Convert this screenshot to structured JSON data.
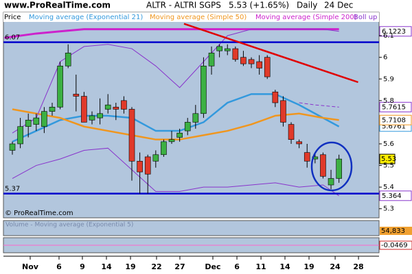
{
  "header": {
    "site": "www.ProRealTime.com",
    "title": "ALTR - ALTRI SGPS",
    "quote": "5.53 (+1.65%)",
    "period": "Daily",
    "date": "24 Dec"
  },
  "chart_data": {
    "type": "candlestick",
    "panel_label": "Price",
    "copyright": "© ProRealTime.com",
    "xlim": [
      -1.12,
      46.03
    ],
    "xticks": [
      {
        "value": 2.24,
        "label": "Nov"
      },
      {
        "value": 5.86,
        "label": "6"
      },
      {
        "value": 8.79,
        "label": "9"
      },
      {
        "value": 11.81,
        "label": "14"
      },
      {
        "value": 14.83,
        "label": "19"
      },
      {
        "value": 18.1,
        "label": "22"
      },
      {
        "value": 21.03,
        "label": "27"
      },
      {
        "value": 25.17,
        "label": "Dec"
      },
      {
        "value": 28.19,
        "label": "6"
      },
      {
        "value": 31.21,
        "label": "11"
      },
      {
        "value": 34.22,
        "label": "14"
      },
      {
        "value": 37.24,
        "label": "19"
      },
      {
        "value": 40.52,
        "label": "24"
      },
      {
        "value": 43.45,
        "label": "28"
      }
    ],
    "ylim": [
      5.258,
      6.208
    ],
    "yticks": [
      5.3,
      5.4,
      5.5,
      5.6,
      5.8,
      5.9,
      6,
      6.1
    ],
    "up_color": "#3cb043",
    "down_color": "#e03a2a",
    "x": [
      0,
      1,
      2,
      3,
      4,
      5,
      6,
      7,
      8,
      9,
      10,
      11,
      12,
      13,
      14,
      15,
      16,
      17,
      18,
      19,
      20,
      21,
      22,
      23,
      24,
      25,
      26,
      27,
      28,
      29,
      30,
      31,
      32,
      33,
      34,
      35,
      36,
      37,
      38,
      39,
      40,
      41
    ],
    "open": [
      5.57,
      5.6,
      5.68,
      5.69,
      5.68,
      5.75,
      5.77,
      5.96,
      5.83,
      5.82,
      5.71,
      5.72,
      5.76,
      5.77,
      5.8,
      5.76,
      5.52,
      5.54,
      5.52,
      5.55,
      5.61,
      5.63,
      5.66,
      5.7,
      5.74,
      5.96,
      6.03,
      6.03,
      6.04,
      6.0,
      5.99,
      5.98,
      6.0,
      5.84,
      5.8,
      5.69,
      5.61,
      5.56,
      5.53,
      5.55,
      5.41,
      5.44
    ],
    "high": [
      5.61,
      5.72,
      5.74,
      5.74,
      5.77,
      5.79,
      5.98,
      6.06,
      5.92,
      5.84,
      5.75,
      5.81,
      5.83,
      5.79,
      5.82,
      5.77,
      5.56,
      5.55,
      5.57,
      5.62,
      5.66,
      5.67,
      5.72,
      5.78,
      6.0,
      6.05,
      6.06,
      6.06,
      6.05,
      6.03,
      6.0,
      6.01,
      6.01,
      5.85,
      5.82,
      5.7,
      5.62,
      5.6,
      5.56,
      5.56,
      5.48,
      5.55
    ],
    "low": [
      5.55,
      5.58,
      5.63,
      5.66,
      5.65,
      5.73,
      5.76,
      5.95,
      5.75,
      5.7,
      5.69,
      5.69,
      5.74,
      5.71,
      5.74,
      5.43,
      5.37,
      5.37,
      5.49,
      5.54,
      5.6,
      5.61,
      5.64,
      5.67,
      5.72,
      5.92,
      6.0,
      6.01,
      5.98,
      5.96,
      5.95,
      5.92,
      5.9,
      5.77,
      5.68,
      5.6,
      5.58,
      5.49,
      5.51,
      5.44,
      5.39,
      5.42
    ],
    "close": [
      5.6,
      5.68,
      5.71,
      5.72,
      5.75,
      5.77,
      5.96,
      6.02,
      5.82,
      5.7,
      5.73,
      5.74,
      5.78,
      5.76,
      5.76,
      5.52,
      5.47,
      5.46,
      5.55,
      5.61,
      5.62,
      5.65,
      5.7,
      5.74,
      5.96,
      6.02,
      6.05,
      6.04,
      5.99,
      5.97,
      5.97,
      5.95,
      5.91,
      5.79,
      5.7,
      5.62,
      5.6,
      5.52,
      5.54,
      5.45,
      5.44,
      5.53
    ],
    "price_label_color": "#ffee00",
    "lines": [
      {
        "name": "Moving average (Exponential 21)",
        "color": "#3399dd",
        "width": 2.5,
        "x": [
          0,
          3,
          6,
          9,
          12,
          15,
          18,
          21,
          24,
          27,
          30,
          33,
          36,
          39,
          41
        ],
        "values": [
          5.61,
          5.66,
          5.71,
          5.73,
          5.73,
          5.72,
          5.66,
          5.66,
          5.7,
          5.79,
          5.83,
          5.83,
          5.78,
          5.72,
          5.68
        ],
        "end_label": "5.6761"
      },
      {
        "name": "Moving average (Simple 50)",
        "color": "#f0961e",
        "width": 2.5,
        "x": [
          0,
          3,
          6,
          9,
          12,
          15,
          18,
          21,
          24,
          27,
          30,
          33,
          36,
          39,
          41
        ],
        "values": [
          5.76,
          5.74,
          5.72,
          5.68,
          5.66,
          5.64,
          5.62,
          5.62,
          5.64,
          5.66,
          5.69,
          5.73,
          5.74,
          5.72,
          5.71
        ],
        "end_label": "5.7108"
      },
      {
        "name": "Moving average (Simple 200)",
        "color": "#cc22cc",
        "width": 3,
        "x": [
          -1,
          3,
          6,
          9,
          12,
          18,
          24,
          30,
          36,
          41
        ],
        "values": [
          6.09,
          6.11,
          6.12,
          6.13,
          6.13,
          6.13,
          6.13,
          6.13,
          6.13,
          6.13
        ]
      },
      {
        "name": "Boll up",
        "color": "#8833cc",
        "width": 1,
        "x": [
          0,
          3,
          6,
          9,
          12,
          15,
          18,
          21,
          24,
          27,
          30,
          33,
          36,
          39,
          41
        ],
        "values": [
          5.65,
          5.72,
          5.98,
          6.05,
          6.06,
          6.04,
          5.96,
          5.86,
          5.98,
          6.1,
          6.13,
          6.13,
          6.13,
          6.13,
          6.12
        ],
        "end_label": "6.1223"
      },
      {
        "color": "#8833cc",
        "width": 1,
        "dash": true,
        "x": [
          36,
          38,
          41
        ],
        "values": [
          5.79,
          5.78,
          5.77
        ],
        "end_label": "5.7615"
      },
      {
        "color": "#8833cc",
        "width": 1,
        "x": [
          0,
          3,
          6,
          9,
          12,
          15,
          18,
          21,
          24,
          27,
          30,
          33,
          36,
          39,
          41
        ],
        "values": [
          5.44,
          5.5,
          5.53,
          5.57,
          5.58,
          5.48,
          5.38,
          5.38,
          5.4,
          5.4,
          5.41,
          5.42,
          5.4,
          5.41,
          5.36
        ],
        "end_label": "5.364"
      }
    ],
    "levels": [
      {
        "value": 6.07,
        "color": "#0000cc"
      },
      {
        "value": 5.37,
        "color": "#0000cc"
      }
    ],
    "trendline": {
      "x": [
        21.55,
        43.4
      ],
      "values": [
        6.155,
        5.885
      ],
      "color": "#e00000"
    },
    "volume_panel": {
      "label": "Volume - Moving average (Exponential 5)",
      "value_label": "54,833"
    },
    "indicator_panel": {
      "value_label": "-0.0469"
    }
  }
}
